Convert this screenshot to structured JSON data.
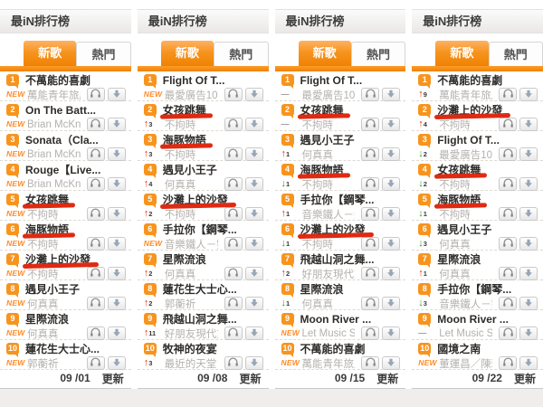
{
  "page": {
    "accent_color": "#f7941e",
    "annotation_color": "#df2a12"
  },
  "widget": {
    "title": "最iN排行榜",
    "tabs": [
      {
        "label": "新歌",
        "active": true
      },
      {
        "label": "熱門",
        "active": false
      }
    ],
    "new_label": "NEW",
    "update_label": "更新",
    "icons": {
      "listen": "headphones-icon",
      "download": "download-icon"
    }
  },
  "columns": [
    {
      "date": "09 /01",
      "entries": [
        {
          "rank": 1,
          "title": "不萬能的喜劇",
          "artist": "萬能青年旅店",
          "change": {
            "type": "new"
          },
          "marked": false
        },
        {
          "rank": 2,
          "title": "On The Batt...",
          "artist": "Brian McKni...",
          "change": {
            "type": "new"
          },
          "marked": false
        },
        {
          "rank": 3,
          "title": "Sonata（Cla...",
          "artist": "Brian McKni...",
          "change": {
            "type": "new"
          },
          "marked": false
        },
        {
          "rank": 4,
          "title": "Rouge【Live...",
          "artist": "Brian McKni...",
          "change": {
            "type": "new"
          },
          "marked": false
        },
        {
          "rank": 5,
          "title": "女孩跳舞",
          "artist": "不拘時",
          "change": {
            "type": "new"
          },
          "marked": true
        },
        {
          "rank": 6,
          "title": "海豚物語",
          "artist": "不拘時",
          "change": {
            "type": "new"
          },
          "marked": true
        },
        {
          "rank": 7,
          "title": "沙灘上的沙發",
          "artist": "不拘時",
          "change": {
            "type": "new"
          },
          "marked": true
        },
        {
          "rank": 8,
          "title": "遇見小王子",
          "artist": "何真真",
          "change": {
            "type": "new"
          },
          "marked": false
        },
        {
          "rank": 9,
          "title": "星際流浪",
          "artist": "何真真",
          "change": {
            "type": "new"
          },
          "marked": false
        },
        {
          "rank": 10,
          "title": "蓮花生大士心...",
          "artist": "郭蘅祈",
          "change": {
            "type": "new"
          },
          "marked": false
        }
      ]
    },
    {
      "date": "09 /08",
      "entries": [
        {
          "rank": 1,
          "title": "Flight Of T...",
          "artist": "最愛廣告101",
          "change": {
            "type": "new"
          },
          "marked": false
        },
        {
          "rank": 2,
          "title": "女孩跳舞",
          "artist": "不拘時",
          "change": {
            "type": "up",
            "n": 3
          },
          "marked": true
        },
        {
          "rank": 3,
          "title": "海豚物語",
          "artist": "不拘時",
          "change": {
            "type": "up",
            "n": 3
          },
          "marked": true
        },
        {
          "rank": 4,
          "title": "遇見小王子",
          "artist": "何真真",
          "change": {
            "type": "up",
            "n": 4
          },
          "marked": false
        },
        {
          "rank": 5,
          "title": "沙灘上的沙發",
          "artist": "不拘時",
          "change": {
            "type": "up",
            "n": 2
          },
          "marked": true
        },
        {
          "rank": 6,
          "title": "手拉你【鋼琴...",
          "artist": "音樂鐵人－劉...",
          "change": {
            "type": "new"
          },
          "marked": false
        },
        {
          "rank": 7,
          "title": "星際流浪",
          "artist": "何真真",
          "change": {
            "type": "up",
            "n": 2
          },
          "marked": false
        },
        {
          "rank": 8,
          "title": "蓮花生大士心...",
          "artist": "郭蘅祈",
          "change": {
            "type": "up",
            "n": 2
          },
          "marked": false
        },
        {
          "rank": 9,
          "title": "飛越山洞之舞...",
          "artist": "好朋友現代重...",
          "change": {
            "type": "up",
            "n": 11
          },
          "marked": false
        },
        {
          "rank": 10,
          "title": "牧神的夜宴",
          "artist": "最近的天堂",
          "change": {
            "type": "up",
            "n": 3
          },
          "marked": false
        }
      ]
    },
    {
      "date": "09 /15",
      "entries": [
        {
          "rank": 1,
          "title": "Flight Of T...",
          "artist": "最愛廣告101",
          "change": {
            "type": "same"
          },
          "marked": false
        },
        {
          "rank": 2,
          "title": "女孩跳舞",
          "artist": "不拘時",
          "change": {
            "type": "same"
          },
          "marked": true
        },
        {
          "rank": 3,
          "title": "遇見小王子",
          "artist": "何真真",
          "change": {
            "type": "up",
            "n": 1
          },
          "marked": false
        },
        {
          "rank": 4,
          "title": "海豚物語",
          "artist": "不拘時",
          "change": {
            "type": "down",
            "n": 1
          },
          "marked": true
        },
        {
          "rank": 5,
          "title": "手拉你【鋼琴...",
          "artist": "音樂鐵人－劉...",
          "change": {
            "type": "up",
            "n": 1
          },
          "marked": false
        },
        {
          "rank": 6,
          "title": "沙灘上的沙發",
          "artist": "不拘時",
          "change": {
            "type": "down",
            "n": 1
          },
          "marked": true
        },
        {
          "rank": 7,
          "title": "飛越山洞之舞...",
          "artist": "好朋友現代重...",
          "change": {
            "type": "up",
            "n": 2
          },
          "marked": false
        },
        {
          "rank": 8,
          "title": "星際流浪",
          "artist": "何真真",
          "change": {
            "type": "down",
            "n": 1
          },
          "marked": false
        },
        {
          "rank": 9,
          "title": "Moon River ...",
          "artist": "Let Music S...",
          "change": {
            "type": "new"
          },
          "marked": false
        },
        {
          "rank": 10,
          "title": "不萬能的喜劇",
          "artist": "萬能青年旅店",
          "change": {
            "type": "new"
          },
          "marked": false
        }
      ]
    },
    {
      "date": "09 /22",
      "entries": [
        {
          "rank": 1,
          "title": "不萬能的喜劇",
          "artist": "萬能青年旅店",
          "change": {
            "type": "up",
            "n": 9
          },
          "marked": false
        },
        {
          "rank": 2,
          "title": "沙灘上的沙發",
          "artist": "不拘時",
          "change": {
            "type": "up",
            "n": 4
          },
          "marked": true
        },
        {
          "rank": 3,
          "title": "Flight Of T...",
          "artist": "最愛廣告101",
          "change": {
            "type": "down",
            "n": 2
          },
          "marked": false
        },
        {
          "rank": 4,
          "title": "女孩跳舞",
          "artist": "不拘時",
          "change": {
            "type": "down",
            "n": 2
          },
          "marked": true
        },
        {
          "rank": 5,
          "title": "海豚物語",
          "artist": "不拘時",
          "change": {
            "type": "down",
            "n": 1
          },
          "marked": true
        },
        {
          "rank": 6,
          "title": "遇見小王子",
          "artist": "何真真",
          "change": {
            "type": "down",
            "n": 3
          },
          "marked": false
        },
        {
          "rank": 7,
          "title": "星際流浪",
          "artist": "何真真",
          "change": {
            "type": "up",
            "n": 1
          },
          "marked": false
        },
        {
          "rank": 8,
          "title": "手拉你【鋼琴...",
          "artist": "音樂鐵人－劉...",
          "change": {
            "type": "down",
            "n": 3
          },
          "marked": false
        },
        {
          "rank": 9,
          "title": "Moon River ...",
          "artist": "Let Music S...",
          "change": {
            "type": "same"
          },
          "marked": false
        },
        {
          "rank": 10,
          "title": "國境之南",
          "artist": "董運昌／陳雅...",
          "change": {
            "type": "new"
          },
          "marked": false
        }
      ]
    }
  ]
}
